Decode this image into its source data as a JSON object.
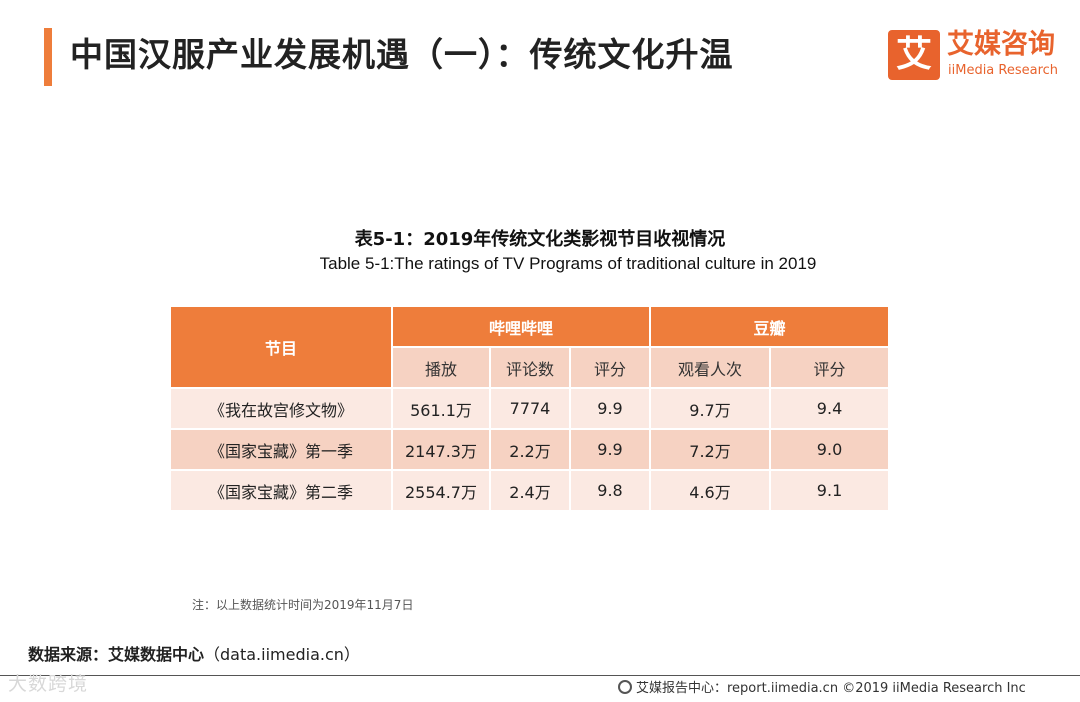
{
  "header": {
    "title": "中国汉服产业发展机遇（一）：传统文化升温",
    "accent_color": "#ee7d3b"
  },
  "logo": {
    "mark": "艾",
    "name_cn": "艾媒咨询",
    "name_en": "iiMedia Research",
    "color": "#e8632d"
  },
  "table": {
    "title_cn": "表5-1：2019年传统文化类影视节目收视情况",
    "title_en": "Table 5-1:The ratings of TV Programs of traditional culture in 2019",
    "header_program": "节目",
    "group_bilibili": "哔哩哔哩",
    "group_douban": "豆瓣",
    "sub_headers": [
      "播放",
      "评论数",
      "评分",
      "观看人次",
      "评分"
    ],
    "rows": [
      {
        "program": "《我在故宫修文物》",
        "plays": "561.1万",
        "comments": "7774",
        "bili_score": "9.9",
        "views": "9.7万",
        "douban_score": "9.4"
      },
      {
        "program": "《国家宝藏》第一季",
        "plays": "2147.3万",
        "comments": "2.2万",
        "bili_score": "9.9",
        "views": "7.2万",
        "douban_score": "9.0"
      },
      {
        "program": "《国家宝藏》第二季",
        "plays": "2554.7万",
        "comments": "2.4万",
        "bili_score": "9.8",
        "views": "4.6万",
        "douban_score": "9.1"
      }
    ]
  },
  "note": "注：以上数据统计时间为2019年11月7日",
  "source": {
    "label": "数据来源：艾媒数据中心",
    "url": "（data.iimedia.cn）"
  },
  "footer": {
    "watermark": "大数跨境",
    "center_text": "艾媒报告中心：report.iimedia.cn  ©2019  iiMedia Research  Inc"
  }
}
